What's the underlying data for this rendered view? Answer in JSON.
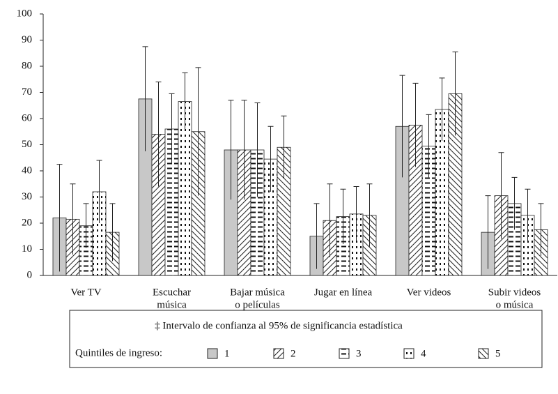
{
  "chart_data": {
    "type": "bar",
    "categories": [
      [
        "Ver TV"
      ],
      [
        "Escuchar",
        "música"
      ],
      [
        "Bajar música",
        "o películas"
      ],
      [
        "Jugar en línea"
      ],
      [
        "Ver videos"
      ],
      [
        "Subir videos",
        "o música"
      ]
    ],
    "series": [
      {
        "name": "1",
        "values": [
          22,
          67.5,
          48,
          15,
          57,
          16.5
        ],
        "errors": [
          20.5,
          20,
          19,
          12.5,
          19.5,
          14
        ]
      },
      {
        "name": "2",
        "values": [
          21.5,
          54,
          48,
          21,
          57.5,
          30.5
        ],
        "errors": [
          13.5,
          20,
          19,
          14,
          16,
          16.5
        ]
      },
      {
        "name": "3",
        "values": [
          19,
          56,
          48,
          22.5,
          49.5,
          27.5
        ],
        "errors": [
          8.5,
          13.5,
          18,
          10.5,
          12,
          10
        ]
      },
      {
        "name": "4",
        "values": [
          32,
          66.5,
          44.5,
          23.5,
          63.5,
          23
        ],
        "errors": [
          12,
          11,
          12.5,
          10.5,
          12,
          10
        ]
      },
      {
        "name": "5",
        "values": [
          16.5,
          55,
          49,
          23,
          69.5,
          17.5
        ],
        "errors": [
          11,
          24.5,
          12,
          12,
          16,
          10
        ]
      }
    ],
    "ylim": [
      0,
      100
    ],
    "yticks": [
      0,
      10,
      20,
      30,
      40,
      50,
      60,
      70,
      80,
      90,
      100
    ],
    "grid": false,
    "note": "‡ Intervalo de confianza al 95% de significancia estadística",
    "legend_title": "Quintiles de ingreso:"
  }
}
